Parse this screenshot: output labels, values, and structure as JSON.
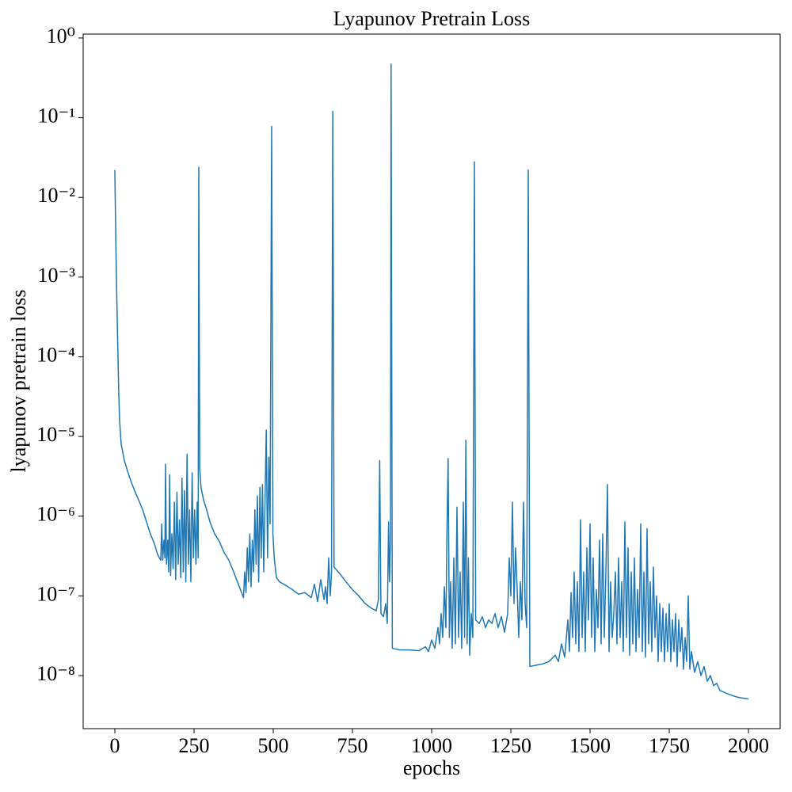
{
  "chart_data": {
    "type": "line",
    "title": "Lyapunov Pretrain Loss",
    "x_label": "epochs",
    "y_label": "lyapunov pretrain loss",
    "color": "#1f77b4",
    "y_log": true,
    "grid": false,
    "xlim": [
      -100,
      2100
    ],
    "xticks": [
      0,
      250,
      500,
      750,
      1000,
      1250,
      1500,
      1750,
      2000
    ],
    "ylim": [
      2.16e-09,
      1.12
    ],
    "yticks": [
      {
        "value": 1e-08,
        "label": "10⁻⁸"
      },
      {
        "value": 1e-07,
        "label": "10⁻⁷"
      },
      {
        "value": 1e-06,
        "label": "10⁻⁶"
      },
      {
        "value": 1e-05,
        "label": "10⁻⁵"
      },
      {
        "value": 0.0001,
        "label": "10⁻⁴"
      },
      {
        "value": 0.001,
        "label": "10⁻³"
      },
      {
        "value": 0.01,
        "label": "10⁻²"
      },
      {
        "value": 0.1,
        "label": "10⁻¹"
      },
      {
        "value": 1,
        "label": "10⁰"
      }
    ],
    "x": [
      0,
      3,
      6,
      9,
      12,
      15,
      20,
      30,
      40,
      50,
      62,
      75,
      88,
      100,
      112,
      125,
      135,
      145,
      148,
      151,
      155,
      158,
      160,
      163,
      167,
      170,
      173,
      176,
      180,
      184,
      188,
      192,
      196,
      200,
      204,
      208,
      212,
      216,
      220,
      224,
      228,
      232,
      236,
      240,
      244,
      248,
      252,
      256,
      260,
      263,
      265,
      268,
      272,
      280,
      290,
      300,
      315,
      330,
      345,
      360,
      375,
      390,
      400,
      406,
      410,
      414,
      418,
      422,
      426,
      430,
      434,
      438,
      442,
      446,
      450,
      454,
      458,
      462,
      466,
      470,
      474,
      478,
      482,
      486,
      490,
      495,
      499,
      503,
      510,
      520,
      540,
      560,
      580,
      600,
      620,
      630,
      640,
      650,
      660,
      665,
      670,
      675,
      680,
      684,
      688,
      692,
      710,
      730,
      750,
      770,
      790,
      810,
      825,
      832,
      836,
      840,
      848,
      855,
      860,
      864,
      867,
      870,
      872,
      876,
      900,
      930,
      960,
      980,
      990,
      1000,
      1010,
      1020,
      1025,
      1030,
      1035,
      1040,
      1045,
      1048,
      1052,
      1056,
      1060,
      1065,
      1070,
      1075,
      1080,
      1085,
      1090,
      1095,
      1100,
      1104,
      1108,
      1112,
      1116,
      1120,
      1125,
      1130,
      1135,
      1139,
      1150,
      1160,
      1170,
      1180,
      1190,
      1200,
      1210,
      1220,
      1230,
      1240,
      1245,
      1250,
      1255,
      1260,
      1265,
      1270,
      1275,
      1280,
      1285,
      1290,
      1295,
      1300,
      1305,
      1310,
      1330,
      1350,
      1370,
      1390,
      1400,
      1410,
      1420,
      1430,
      1435,
      1440,
      1445,
      1450,
      1455,
      1460,
      1465,
      1470,
      1475,
      1480,
      1485,
      1490,
      1495,
      1500,
      1505,
      1510,
      1515,
      1520,
      1525,
      1530,
      1535,
      1540,
      1545,
      1550,
      1555,
      1560,
      1565,
      1570,
      1575,
      1580,
      1585,
      1590,
      1595,
      1600,
      1605,
      1610,
      1615,
      1620,
      1625,
      1630,
      1635,
      1640,
      1645,
      1650,
      1655,
      1660,
      1665,
      1670,
      1675,
      1680,
      1685,
      1690,
      1695,
      1700,
      1705,
      1710,
      1715,
      1720,
      1725,
      1730,
      1735,
      1740,
      1745,
      1750,
      1755,
      1760,
      1765,
      1770,
      1775,
      1780,
      1785,
      1790,
      1795,
      1800,
      1805,
      1810,
      1815,
      1820,
      1830,
      1840,
      1850,
      1860,
      1870,
      1880,
      1890,
      1900,
      1910,
      1930,
      1950,
      1970,
      2000
    ],
    "values": [
      0.022,
      0.003,
      0.0006,
      0.00015,
      4e-05,
      1.6e-05,
      8e-06,
      5e-06,
      3.7e-06,
      2.8e-06,
      2.1e-06,
      1.6e-06,
      1.2e-06,
      8.5e-07,
      6e-07,
      4.5e-07,
      3.3e-07,
      2.8e-07,
      8e-07,
      2.8e-07,
      5e-07,
      3e-07,
      4.5e-06,
      2.5e-07,
      5e-07,
      2e-07,
      3.3e-06,
      1.8e-07,
      6e-07,
      2.2e-07,
      1.5e-06,
      1.6e-07,
      2e-06,
      2.5e-07,
      9e-07,
      1.7e-07,
      3e-06,
      2e-07,
      2.1e-06,
      1.5e-07,
      6e-06,
      2.5e-07,
      1.2e-06,
      1.5e-07,
      3.5e-06,
      3e-07,
      1.2e-06,
      2.5e-07,
      1.5e-06,
      3e-07,
      0.024,
      4e-06,
      2.3e-06,
      1.6e-06,
      1.2e-06,
      8.5e-07,
      6e-07,
      4.8e-07,
      3.5e-07,
      2.8e-07,
      2e-07,
      1.4e-07,
      1.1e-07,
      9.5e-08,
      2e-07,
      1.1e-07,
      4e-07,
      1.5e-07,
      6e-07,
      1.3e-07,
      5e-07,
      2e-07,
      1.2e-06,
      2.5e-07,
      1.8e-06,
      1.5e-07,
      2.3e-06,
      3e-07,
      2.5e-06,
      2e-07,
      1.5e-06,
      1.2e-05,
      3e-07,
      5.5e-06,
      8e-07,
      0.078,
      6e-07,
      3e-07,
      1.7e-07,
      1.5e-07,
      1.35e-07,
      1.2e-07,
      1.05e-07,
      1.1e-07,
      9.5e-08,
      1.4e-07,
      8.5e-08,
      1.6e-07,
      9e-08,
      1.3e-07,
      8e-08,
      3e-07,
      1e-07,
      2e-07,
      0.12,
      2.3e-07,
      1.9e-07,
      1.5e-07,
      1.2e-07,
      1e-07,
      8e-08,
      7e-08,
      6.5e-08,
      9e-08,
      5e-06,
      6e-08,
      5.5e-08,
      8e-08,
      4.5e-08,
      8.5e-07,
      1.5e-07,
      5e-07,
      0.47,
      2.2e-08,
      2.1e-08,
      2.1e-08,
      2.05e-08,
      2.3e-08,
      2e-08,
      2.8e-08,
      2.2e-08,
      4e-08,
      2.5e-08,
      6e-08,
      3e-08,
      1.3e-07,
      4e-08,
      5e-07,
      5.3e-06,
      3e-08,
      1.5e-07,
      2.2e-08,
      3e-07,
      2.5e-08,
      1.3e-06,
      3e-08,
      2e-07,
      2.2e-08,
      1.5e-06,
      3e-08,
      9e-06,
      2.5e-08,
      3e-07,
      1.8e-08,
      6e-08,
      3e-08,
      0.028,
      5e-08,
      4.5e-08,
      5.5e-08,
      4e-08,
      5e-08,
      4.5e-08,
      6e-08,
      4e-08,
      5.5e-08,
      3.5e-08,
      6e-08,
      3e-07,
      1e-07,
      1.5e-06,
      8e-08,
      4e-07,
      1.2e-07,
      3e-08,
      1.5e-07,
      5e-08,
      1.5e-06,
      8e-08,
      4e-08,
      0.022,
      1.3e-08,
      1.35e-08,
      1.4e-08,
      1.5e-08,
      1.8e-08,
      1.5e-08,
      2.5e-08,
      1.7e-08,
      5e-08,
      2e-08,
      1.1e-07,
      3e-08,
      2e-07,
      2.5e-08,
      1.5e-07,
      2e-08,
      9e-07,
      3e-08,
      2e-07,
      2e-08,
      4e-07,
      5e-08,
      8e-07,
      3e-08,
      3e-07,
      2e-08,
      1.2e-07,
      4e-08,
      5e-07,
      2.5e-08,
      6e-07,
      3e-08,
      2e-07,
      2.5e-06,
      2e-08,
      1.5e-07,
      3e-08,
      6e-08,
      2e-07,
      2.5e-08,
      3e-07,
      3e-08,
      1.5e-07,
      2e-08,
      8.5e-07,
      3e-08,
      4e-07,
      1.8e-08,
      2e-07,
      2.5e-08,
      3e-07,
      2e-08,
      1.2e-07,
      3e-08,
      8e-07,
      2e-08,
      2e-07,
      1.7e-08,
      7e-07,
      2.5e-08,
      1.5e-07,
      2e-08,
      2.3e-07,
      3e-08,
      1e-07,
      1.5e-08,
      8e-08,
      2e-08,
      7e-08,
      1.5e-08,
      6e-08,
      2e-08,
      8e-08,
      1.5e-08,
      5e-08,
      2e-08,
      6e-08,
      1.3e-08,
      5e-08,
      2e-08,
      4e-08,
      1.2e-08,
      3e-08,
      1.5e-08,
      1e-07,
      1.2e-08,
      2e-08,
      1.1e-08,
      1.5e-08,
      1e-08,
      1.3e-08,
      8.5e-09,
      1e-08,
      7.5e-09,
      8e-09,
      6.5e-09,
      6e-09,
      5.6e-09,
      5.3e-09,
      5.1e-09
    ]
  }
}
